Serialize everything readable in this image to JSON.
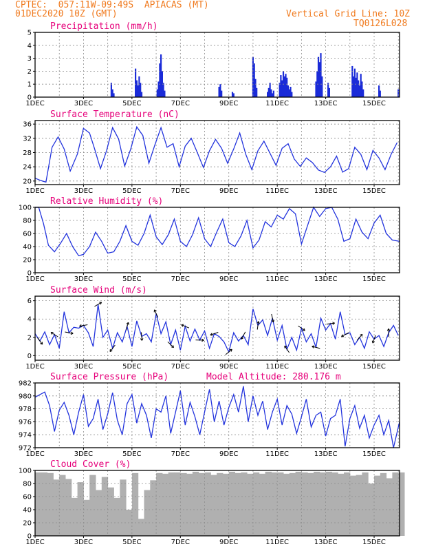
{
  "header": {
    "line1": "CPTEC:  057:11W-09:49S  APIACAS (MT)",
    "line2": "01DEC2020 10Z (GMT)",
    "grid_note": "Vertical Grid Line: 10Z",
    "code": "TQ0126L028"
  },
  "colors": {
    "header": "#f07a1e",
    "title": "#e6007a",
    "line": "#2233dd",
    "bar": "#1a2bd8",
    "cloud": "#b0b0b0",
    "grid": "#8c8c8c"
  },
  "x_axis": {
    "day_min": 1,
    "day_max": 16.05,
    "labels": [
      {
        "label": "1DEC",
        "day": 1
      },
      {
        "label": "3DEC",
        "day": 3
      },
      {
        "label": "5DEC",
        "day": 5
      },
      {
        "label": "7DEC",
        "day": 7
      },
      {
        "label": "9DEC",
        "day": 9
      },
      {
        "label": "11DEC",
        "day": 11
      },
      {
        "label": "13DEC",
        "day": 13
      },
      {
        "label": "15DEC",
        "day": 15
      }
    ],
    "grid_days": [
      2,
      3,
      4,
      5,
      6,
      7,
      8,
      9,
      10,
      11,
      12,
      13,
      14,
      15,
      16
    ]
  },
  "chart_data": [
    {
      "type": "bar",
      "title": "Precipitation (mm/h)",
      "ylim": [
        0,
        5
      ],
      "yticks": [
        0,
        1,
        2,
        3,
        4,
        5
      ],
      "x": [
        4.15,
        4.2,
        4.25,
        5.15,
        5.2,
        5.25,
        5.3,
        5.35,
        5.4,
        6.05,
        6.1,
        6.15,
        6.2,
        6.25,
        6.3,
        6.35,
        8.6,
        8.65,
        8.7,
        9.15,
        9.2,
        10.0,
        10.05,
        10.1,
        10.15,
        10.6,
        10.65,
        10.7,
        10.75,
        10.8,
        10.85,
        11.1,
        11.15,
        11.2,
        11.25,
        11.3,
        11.35,
        11.4,
        11.45,
        11.5,
        11.55,
        11.6,
        12.6,
        12.65,
        12.7,
        12.75,
        12.8,
        12.85,
        13.1,
        13.15,
        14.1,
        14.15,
        14.2,
        14.25,
        14.3,
        14.35,
        14.4,
        14.45,
        14.5,
        14.55,
        15.2,
        15.25,
        16.0
      ],
      "values": [
        1.1,
        0.6,
        0.3,
        2.2,
        1.3,
        0.9,
        1.6,
        1.1,
        0.4,
        0.6,
        1.2,
        2.6,
        3.3,
        2.0,
        1.1,
        0.5,
        0.8,
        1.0,
        0.5,
        0.4,
        0.3,
        3.1,
        2.6,
        1.4,
        0.7,
        0.4,
        0.7,
        1.1,
        0.6,
        0.3,
        0.5,
        1.1,
        1.7,
        1.3,
        2.0,
        1.6,
        1.8,
        1.5,
        0.9,
        0.6,
        0.8,
        0.4,
        1.2,
        2.0,
        3.1,
        2.7,
        3.4,
        1.6,
        1.1,
        0.7,
        2.4,
        1.6,
        2.2,
        1.5,
        1.9,
        1.3,
        0.9,
        1.8,
        1.2,
        0.6,
        0.9,
        0.5,
        0.6
      ]
    },
    {
      "type": "line",
      "title": "Surface Temperature (nC)",
      "ylim": [
        19,
        37
      ],
      "yticks": [
        20,
        24,
        28,
        32,
        36
      ],
      "x": [
        1.0,
        1.25,
        1.45,
        1.7,
        1.95,
        2.2,
        2.45,
        2.75,
        3.0,
        3.25,
        3.45,
        3.7,
        3.95,
        4.2,
        4.45,
        4.7,
        4.95,
        5.2,
        5.45,
        5.7,
        5.95,
        6.2,
        6.45,
        6.7,
        6.95,
        7.2,
        7.45,
        7.7,
        7.95,
        8.2,
        8.45,
        8.7,
        8.95,
        9.2,
        9.45,
        9.7,
        9.95,
        10.2,
        10.45,
        10.7,
        10.95,
        11.2,
        11.45,
        11.7,
        11.95,
        12.2,
        12.45,
        12.7,
        12.95,
        13.2,
        13.45,
        13.7,
        13.95,
        14.2,
        14.45,
        14.7,
        14.95,
        15.2,
        15.45,
        15.7,
        15.95
      ],
      "values": [
        20.8,
        20.1,
        19.7,
        29.5,
        32.4,
        29.0,
        22.8,
        27.6,
        34.8,
        33.5,
        29.2,
        23.5,
        28.5,
        35.0,
        31.8,
        24.2,
        29.0,
        35.2,
        32.8,
        25.0,
        30.2,
        35.0,
        29.5,
        30.5,
        24.0,
        29.8,
        32.0,
        28.0,
        23.8,
        28.5,
        31.7,
        29.2,
        25.0,
        29.0,
        33.5,
        27.5,
        23.2,
        28.5,
        31.2,
        27.8,
        24.4,
        29.2,
        30.5,
        26.2,
        24.1,
        26.5,
        25.2,
        23.1,
        22.4,
        24.0,
        27.0,
        22.5,
        23.5,
        29.5,
        27.5,
        23.2,
        28.6,
        26.5,
        23.2,
        27.5,
        30.8
      ]
    },
    {
      "type": "line",
      "title": "Relative Humidity (%)",
      "ylim": [
        0,
        100
      ],
      "yticks": [
        0,
        20,
        40,
        60,
        80,
        100
      ],
      "x": [
        1.0,
        1.15,
        1.35,
        1.55,
        1.8,
        2.05,
        2.3,
        2.55,
        2.8,
        3.0,
        3.25,
        3.5,
        3.75,
        4.0,
        4.25,
        4.5,
        4.75,
        5.0,
        5.25,
        5.5,
        5.75,
        6.0,
        6.25,
        6.5,
        6.75,
        7.0,
        7.25,
        7.5,
        7.75,
        8.0,
        8.25,
        8.5,
        8.75,
        9.0,
        9.25,
        9.5,
        9.75,
        10.0,
        10.25,
        10.5,
        10.75,
        11.0,
        11.25,
        11.5,
        11.75,
        12.0,
        12.25,
        12.5,
        12.75,
        13.0,
        13.25,
        13.5,
        13.75,
        14.0,
        14.25,
        14.5,
        14.75,
        15.0,
        15.25,
        15.5,
        15.75,
        16.05
      ],
      "values": [
        100,
        100,
        75,
        42,
        32,
        45,
        60,
        40,
        26,
        28,
        40,
        62,
        48,
        30,
        32,
        48,
        72,
        48,
        42,
        60,
        88,
        55,
        43,
        58,
        82,
        48,
        40,
        58,
        84,
        52,
        40,
        62,
        82,
        46,
        40,
        56,
        80,
        38,
        50,
        78,
        70,
        88,
        82,
        98,
        90,
        44,
        72,
        100,
        86,
        98,
        100,
        82,
        48,
        52,
        82,
        62,
        52,
        76,
        88,
        60,
        50,
        48
      ]
    },
    {
      "type": "line",
      "title": "Surface Wind (m/s)",
      "ylim": [
        -0.5,
        6.5
      ],
      "yticks": [
        0,
        2,
        4,
        6
      ],
      "x": [
        1.0,
        1.2,
        1.4,
        1.6,
        1.8,
        2.0,
        2.2,
        2.4,
        2.6,
        2.8,
        3.0,
        3.2,
        3.4,
        3.6,
        3.8,
        4.0,
        4.2,
        4.4,
        4.6,
        4.8,
        5.0,
        5.2,
        5.4,
        5.6,
        5.8,
        6.0,
        6.2,
        6.4,
        6.6,
        6.8,
        7.0,
        7.2,
        7.4,
        7.6,
        7.8,
        8.0,
        8.2,
        8.4,
        8.6,
        8.8,
        9.0,
        9.2,
        9.4,
        9.6,
        9.8,
        10.0,
        10.2,
        10.4,
        10.6,
        10.8,
        11.0,
        11.2,
        11.4,
        11.6,
        11.8,
        12.0,
        12.2,
        12.4,
        12.6,
        12.8,
        13.0,
        13.2,
        13.4,
        13.6,
        13.8,
        14.0,
        14.2,
        14.4,
        14.6,
        14.8,
        15.0,
        15.2,
        15.4,
        15.6,
        15.8,
        16.0
      ],
      "values": [
        2.4,
        1.6,
        2.6,
        1.2,
        2.3,
        0.8,
        4.8,
        2.5,
        3.1,
        3.0,
        3.3,
        2.5,
        1.0,
        5.6,
        2.0,
        2.8,
        0.8,
        2.5,
        1.5,
        3.2,
        1.0,
        3.8,
        2.1,
        2.4,
        1.5,
        4.6,
        2.4,
        3.7,
        1.2,
        2.8,
        0.6,
        3.2,
        1.6,
        2.9,
        1.7,
        2.7,
        0.8,
        2.4,
        2.1,
        1.5,
        0.4,
        2.5,
        1.6,
        2.2,
        1.2,
        5.1,
        3.3,
        3.9,
        2.2,
        4.1,
        1.7,
        3.3,
        0.7,
        2.0,
        0.6,
        3.0,
        1.5,
        2.4,
        0.9,
        4.1,
        2.8,
        3.5,
        1.8,
        4.8,
        2.3,
        2.5,
        1.2,
        2.0,
        0.8,
        2.6,
        1.8,
        2.2,
        1.0,
        2.5,
        3.3,
        2.2
      ]
    },
    {
      "type": "line",
      "title": "Surface Pressure (hPa)",
      "annotation": "Model Altitude: 280.176 m",
      "ylim": [
        972,
        982
      ],
      "yticks": [
        972,
        974,
        976,
        978,
        980,
        982
      ],
      "x": [
        1.0,
        1.2,
        1.4,
        1.6,
        1.8,
        2.0,
        2.2,
        2.4,
        2.6,
        2.8,
        3.0,
        3.2,
        3.4,
        3.6,
        3.8,
        4.0,
        4.2,
        4.4,
        4.6,
        4.8,
        5.0,
        5.2,
        5.4,
        5.6,
        5.8,
        6.0,
        6.2,
        6.4,
        6.6,
        6.8,
        7.0,
        7.2,
        7.4,
        7.6,
        7.8,
        8.0,
        8.2,
        8.4,
        8.6,
        8.8,
        9.0,
        9.2,
        9.4,
        9.6,
        9.8,
        10.0,
        10.2,
        10.4,
        10.6,
        10.8,
        11.0,
        11.2,
        11.4,
        11.6,
        11.8,
        12.0,
        12.2,
        12.4,
        12.6,
        12.8,
        13.0,
        13.2,
        13.4,
        13.6,
        13.8,
        14.0,
        14.2,
        14.4,
        14.6,
        14.8,
        15.0,
        15.2,
        15.4,
        15.6,
        15.8,
        16.05
      ],
      "values": [
        979.8,
        980.2,
        980.6,
        978.5,
        974.5,
        977.8,
        979.0,
        977.0,
        974.0,
        977.5,
        980.2,
        975.3,
        976.5,
        979.5,
        974.8,
        977.2,
        980.5,
        976.2,
        974.0,
        978.8,
        980.2,
        975.8,
        978.8,
        977.0,
        973.5,
        978.0,
        977.5,
        980.0,
        974.2,
        977.5,
        980.8,
        975.5,
        979.0,
        976.8,
        974.0,
        977.5,
        981.0,
        976.0,
        979.2,
        975.5,
        978.2,
        980.2,
        977.5,
        981.5,
        976.0,
        980.0,
        977.0,
        979.2,
        974.8,
        977.5,
        979.5,
        975.5,
        978.5,
        977.2,
        974.2,
        976.8,
        979.5,
        975.2,
        977.0,
        977.5,
        973.8,
        976.5,
        977.0,
        979.5,
        972.2,
        976.5,
        978.5,
        975.0,
        977.0,
        973.5,
        975.5,
        977.0,
        974.0,
        976.2,
        972.0,
        976.0
      ]
    },
    {
      "type": "bar",
      "title": "Cloud Cover (%)",
      "ylim": [
        0,
        100
      ],
      "yticks": [
        0,
        20,
        40,
        60,
        80,
        100
      ],
      "x": [
        1.0,
        1.25,
        1.5,
        1.75,
        2.0,
        2.25,
        2.5,
        2.75,
        3.0,
        3.25,
        3.5,
        3.75,
        4.0,
        4.25,
        4.5,
        4.75,
        5.0,
        5.25,
        5.5,
        5.75,
        6.0,
        6.25,
        6.5,
        6.75,
        7.0,
        7.25,
        7.5,
        7.75,
        8.0,
        8.25,
        8.5,
        8.75,
        9.0,
        9.25,
        9.5,
        9.75,
        10.0,
        10.25,
        10.5,
        10.75,
        11.0,
        11.25,
        11.5,
        11.75,
        12.0,
        12.25,
        12.5,
        12.75,
        13.0,
        13.25,
        13.5,
        13.75,
        14.0,
        14.25,
        14.5,
        14.75,
        15.0,
        15.25,
        15.5,
        15.75,
        16.0
      ],
      "values": [
        97,
        97,
        96,
        86,
        93,
        87,
        58,
        82,
        55,
        93,
        70,
        90,
        74,
        58,
        86,
        40,
        96,
        26,
        70,
        85,
        96,
        95,
        97,
        97,
        96,
        95,
        98,
        96,
        97,
        93,
        96,
        95,
        98,
        96,
        97,
        95,
        97,
        95,
        98,
        97,
        97,
        95,
        96,
        98,
        97,
        96,
        98,
        97,
        98,
        97,
        95,
        97,
        92,
        93,
        97,
        80,
        92,
        96,
        88,
        97,
        97
      ]
    }
  ]
}
